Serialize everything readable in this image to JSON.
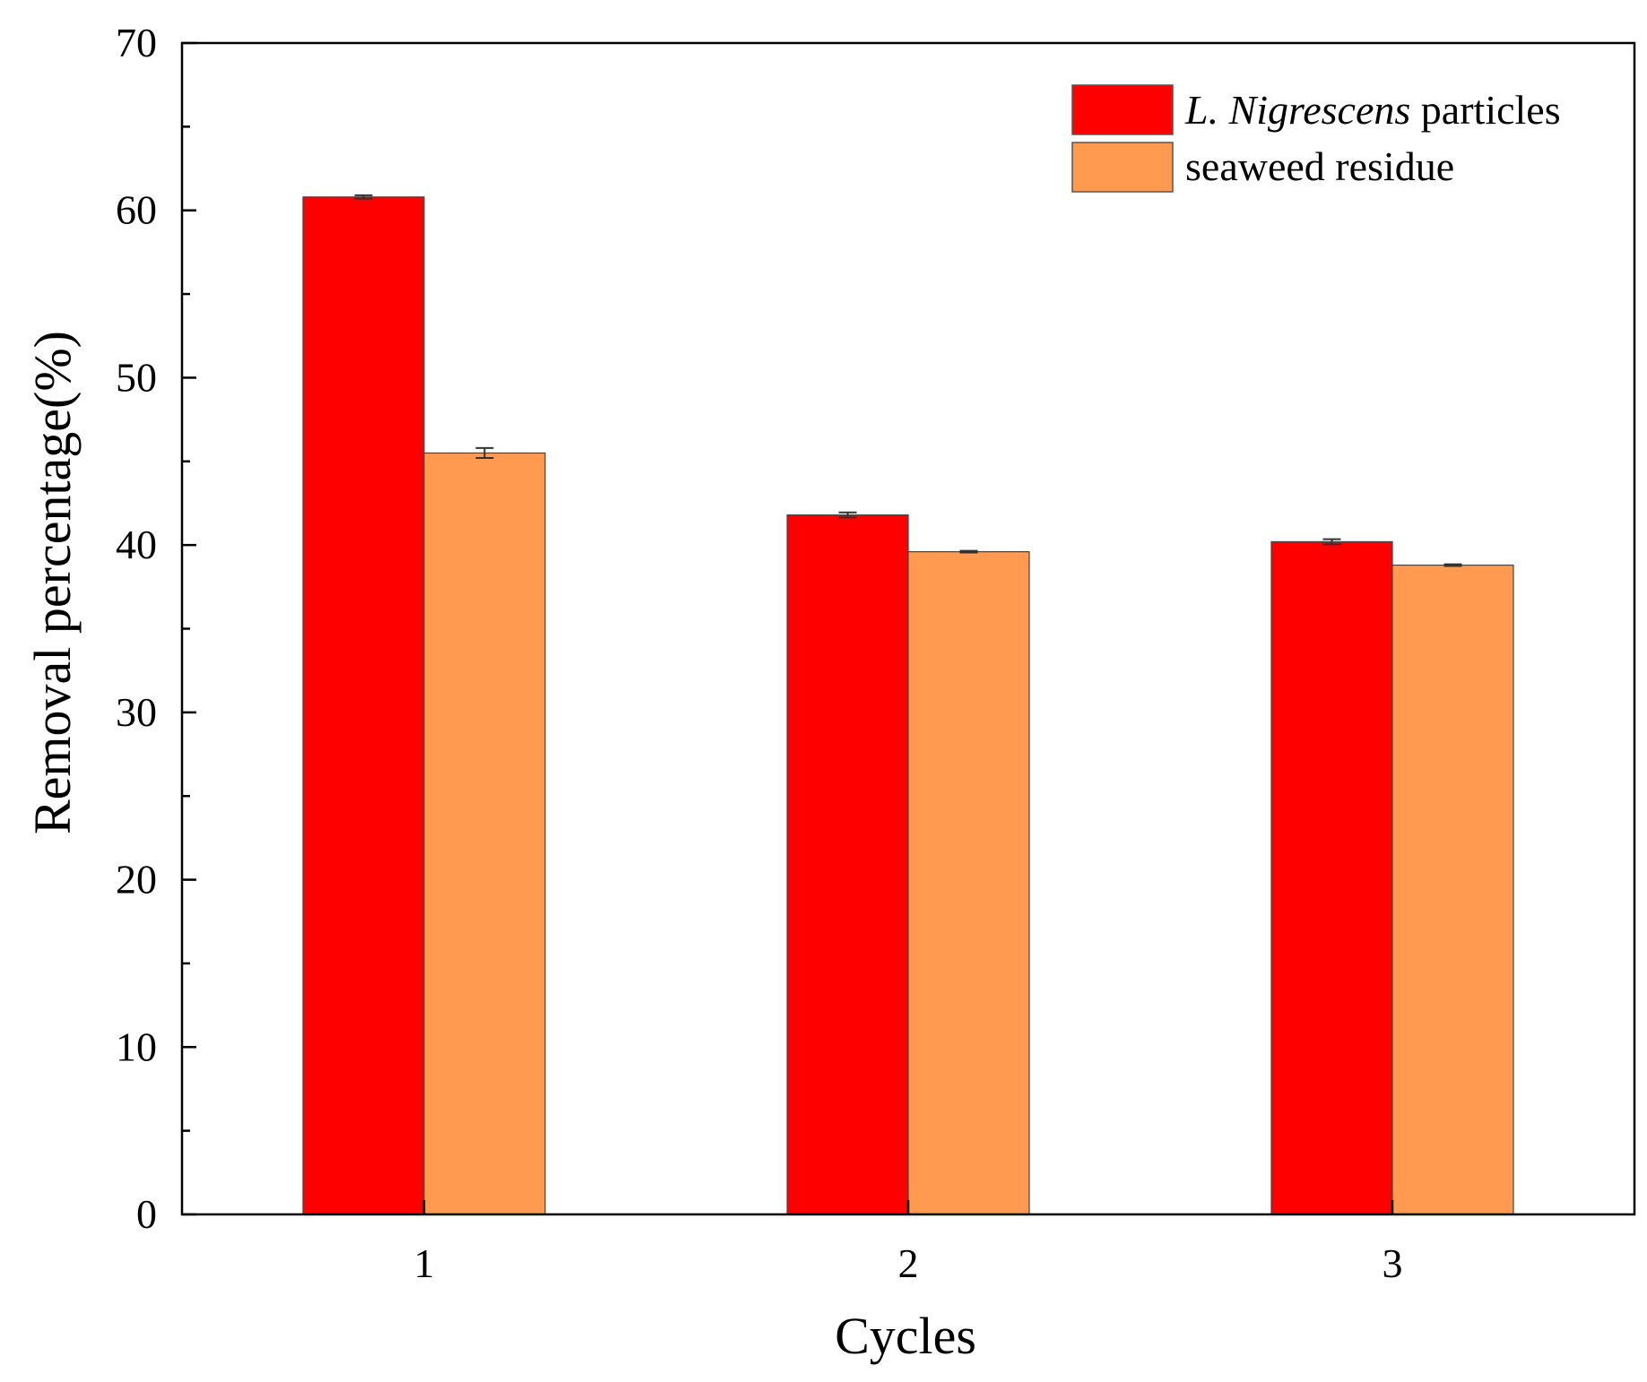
{
  "chart_data": {
    "type": "bar",
    "title": "",
    "xlabel": "Cycles",
    "ylabel": "Removal percentage(%)",
    "categories": [
      "1",
      "2",
      "3"
    ],
    "ylim": [
      0,
      70
    ],
    "yticks": [
      0,
      10,
      20,
      30,
      40,
      50,
      60,
      70
    ],
    "grid": false,
    "legend_position": "top-right",
    "series": [
      {
        "name": "L. Nigrescens particles",
        "name_italic": "L. Nigrescens",
        "name_rest": " particles",
        "color": "#ff0000",
        "values": [
          60.8,
          41.8,
          40.2
        ],
        "errors": [
          0.1,
          0.15,
          0.15
        ]
      },
      {
        "name": "seaweed residue",
        "color": "#ff9a50",
        "values": [
          45.5,
          39.6,
          38.8
        ],
        "errors": [
          0.3,
          0.05,
          0.05
        ]
      }
    ]
  }
}
